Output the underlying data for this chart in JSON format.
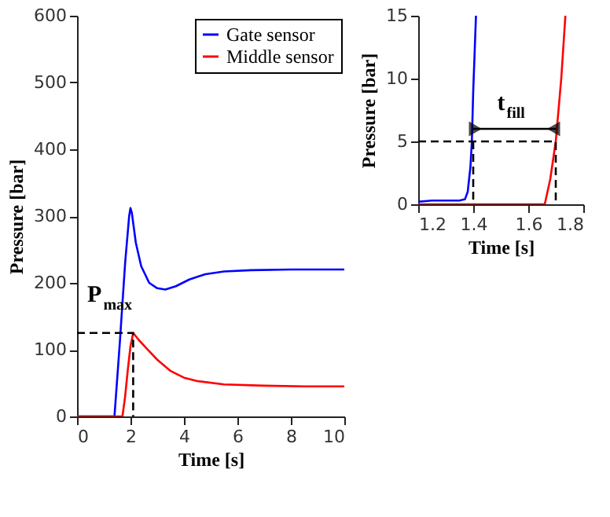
{
  "chart_data": [
    {
      "type": "line",
      "xlabel": "Time [s]",
      "ylabel": "Pressure [bar]",
      "xlim": [
        0,
        10
      ],
      "ylim": [
        0,
        600
      ],
      "xticks": [
        0,
        2,
        4,
        6,
        8,
        10
      ],
      "yticks": [
        0,
        100,
        200,
        300,
        400,
        500,
        600
      ],
      "grid": false,
      "legend": "top right",
      "series": [
        {
          "name": "Gate sensor",
          "color": "#0000ff",
          "x": [
            0,
            1.4,
            1.6,
            1.8,
            1.95,
            2.0,
            2.05,
            2.2,
            2.4,
            2.7,
            3.0,
            3.3,
            3.7,
            4.2,
            4.8,
            5.5,
            6.5,
            8,
            10
          ],
          "values": [
            0,
            0,
            110,
            230,
            300,
            312,
            305,
            260,
            225,
            200,
            192,
            190,
            195,
            205,
            213,
            217,
            219,
            220,
            220
          ]
        },
        {
          "name": "Middle sensor",
          "color": "#ff0000",
          "x": [
            0,
            1.7,
            1.8,
            1.9,
            2.0,
            2.1,
            2.3,
            2.6,
            3.0,
            3.5,
            4.0,
            4.5,
            5.5,
            7,
            8.5,
            10
          ],
          "values": [
            0,
            0,
            30,
            70,
            105,
            125,
            115,
            102,
            85,
            68,
            58,
            53,
            48,
            46,
            45,
            45
          ]
        },
        {
          "color": "#000000",
          "line_style": "dashed",
          "x": [
            0,
            2.1,
            2.1
          ],
          "values": [
            125,
            125,
            0
          ]
        }
      ],
      "annotations": [
        {
          "text": "P$_{max}$",
          "x": 2.1,
          "y": 125
        }
      ]
    },
    {
      "type": "line",
      "xlabel": "Time [s]",
      "ylabel": "Pressure [bar]",
      "xlim": [
        1.2,
        1.8
      ],
      "ylim": [
        0,
        15
      ],
      "xticks": [
        {
          "value": 1.2,
          "label": "1.2"
        },
        {
          "value": 1.4,
          "label": "1.4"
        },
        {
          "value": 1.6,
          "label": "1.6"
        },
        {
          "value": 1.8,
          "label": "1.8"
        }
      ],
      "yticks": [
        0,
        5,
        10,
        15
      ],
      "grid": false,
      "legend": false,
      "series": [
        {
          "color": "#0000ff",
          "x": [
            1.2,
            1.25,
            1.3,
            1.35,
            1.37,
            1.38,
            1.39,
            1.395,
            1.4,
            1.41
          ],
          "values": [
            0.2,
            0.3,
            0.3,
            0.3,
            0.4,
            1,
            3,
            5,
            9,
            15
          ]
        },
        {
          "color": "#ff0000",
          "x": [
            1.2,
            1.4,
            1.6,
            1.66,
            1.68,
            1.7,
            1.72,
            1.735
          ],
          "values": [
            0,
            0,
            0,
            0,
            2,
            5,
            10,
            15
          ]
        },
        {
          "color": "#000000",
          "line_style": "dashed",
          "x": [
            1.2,
            1.7,
            1.7
          ],
          "values": [
            5,
            5,
            0
          ]
        },
        {
          "color": "#000000",
          "line_style": "dashed",
          "x": [
            1.4,
            1.4
          ],
          "values": [
            5,
            0
          ]
        },
        {
          "color": "#000000",
          "line_style": "solid",
          "marker": "triangle",
          "x": [
            1.4,
            1.7
          ],
          "values": [
            6,
            6
          ]
        }
      ],
      "annotations": [
        {
          "text": "t$_{fill}$",
          "x": 1.55,
          "y": 6
        }
      ]
    }
  ]
}
